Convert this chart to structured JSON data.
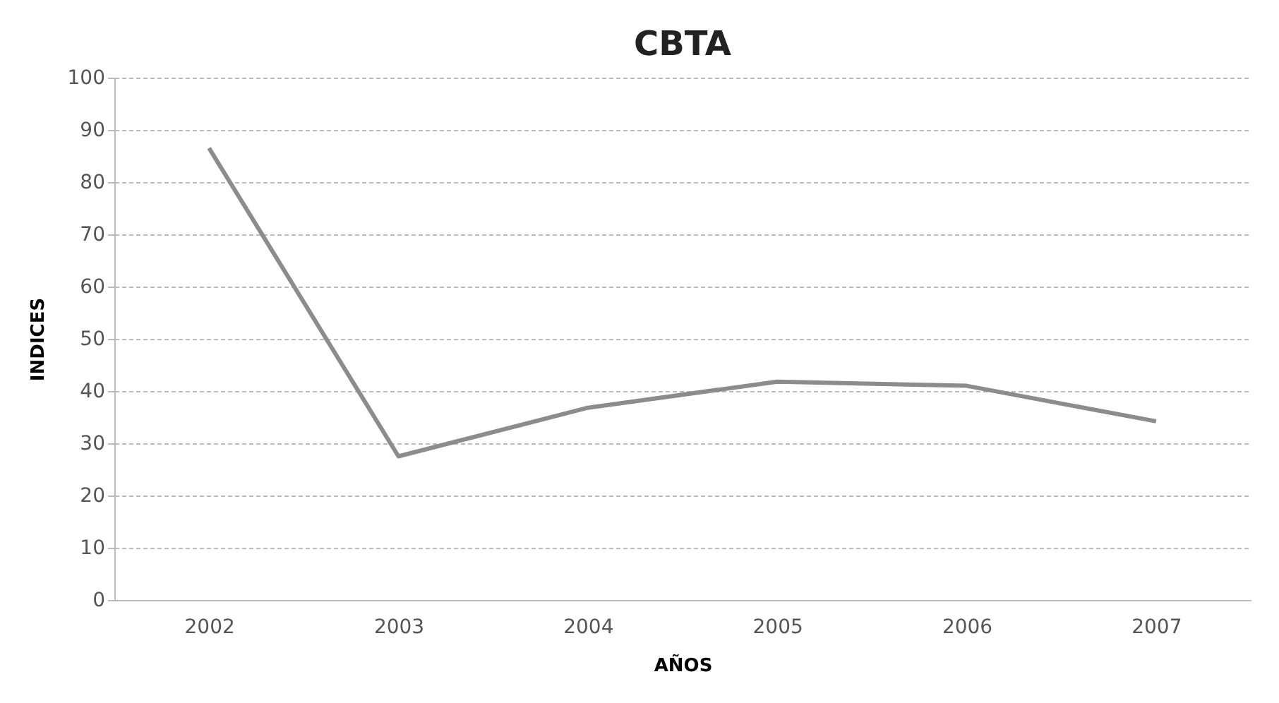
{
  "chart_data": {
    "type": "line",
    "title": "CBTA",
    "xlabel": "AÑOS",
    "ylabel": "INDICES",
    "categories": [
      "2002",
      "2003",
      "2004",
      "2005",
      "2006",
      "2007"
    ],
    "series": [
      {
        "color": "#8c8c8c",
        "values": [
          86.5,
          27.5,
          36.8,
          41.8,
          41,
          34.2
        ]
      }
    ],
    "ylim": [
      0,
      100
    ],
    "yticks": [
      0,
      10,
      20,
      30,
      40,
      50,
      60,
      70,
      80,
      90,
      100
    ],
    "grid": "y",
    "legend": false
  }
}
